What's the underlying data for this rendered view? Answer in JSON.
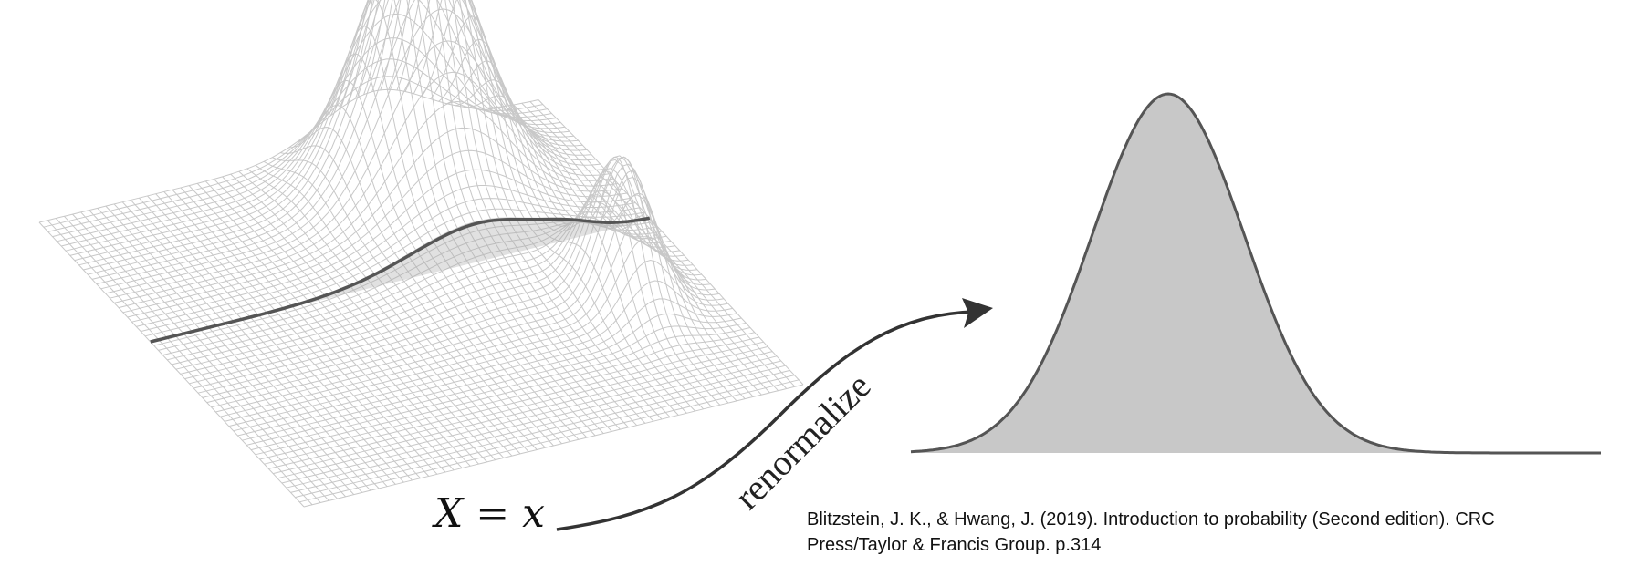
{
  "diagram": {
    "condition_label": "X = x",
    "arrow_label": "renormalize",
    "citation_line1": "Blitzstein, J. K., & Hwang, J. (2019). Introduction to probability (Second edition). CRC",
    "citation_line2": "Press/Taylor & Francis Group. p.314"
  },
  "colors": {
    "mesh": "#c8c8c8",
    "curve": "#555555",
    "fill": "#c8c8c8",
    "arrow": "#333333"
  }
}
